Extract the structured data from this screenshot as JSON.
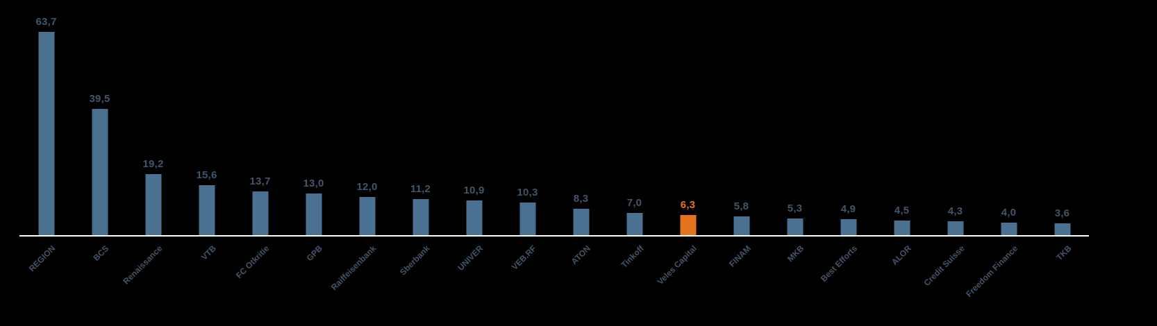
{
  "chart_data": {
    "type": "bar",
    "title": "",
    "xlabel": "",
    "ylabel": "",
    "grid": false,
    "legend": false,
    "ylim": [
      0,
      70
    ],
    "categories": [
      "REGION",
      "BCS",
      "Renaissance",
      "VTB",
      "FC Otkritie",
      "GPB",
      "Raiffeisenbank",
      "Sberbank",
      "UNIVER",
      "VEB.RF",
      "ATON",
      "Tinkoff",
      "Veles Capital",
      "FINAM",
      "MKB",
      "Best Efforts",
      "ALOR",
      "Credit Suisse",
      "Freedom Finance",
      "TKB"
    ],
    "values": [
      63.7,
      39.5,
      19.2,
      15.6,
      13.7,
      13.0,
      12.0,
      11.2,
      10.9,
      10.3,
      8.3,
      7.0,
      6.3,
      5.8,
      5.3,
      4.9,
      4.5,
      4.3,
      4.0,
      3.6
    ],
    "value_labels": [
      "63,7",
      "39,5",
      "19,2",
      "15,6",
      "13,7",
      "13,0",
      "12,0",
      "11,2",
      "10,9",
      "10,3",
      "8,3",
      "7,0",
      "6,3",
      "5,8",
      "5,3",
      "4,9",
      "4,5",
      "4,3",
      "4,0",
      "3,6"
    ],
    "highlight_index": 12,
    "colors": {
      "bar": "#4A7191",
      "highlight": "#E4731E",
      "label": "#44546A",
      "highlight_label": "#E4731E",
      "axis": "#FDFDFD",
      "background": "#000000"
    }
  }
}
